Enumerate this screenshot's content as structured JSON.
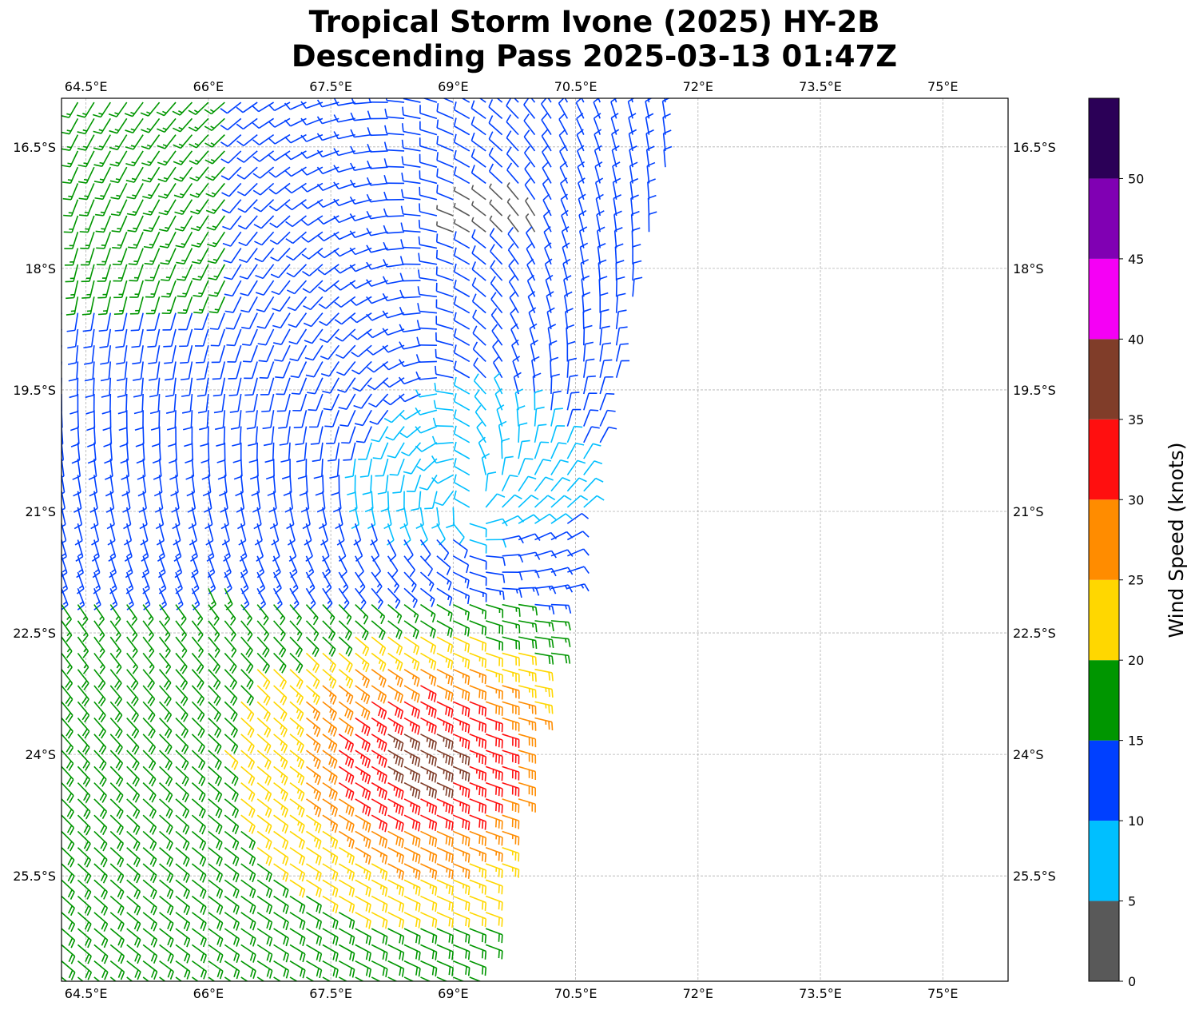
{
  "title": {
    "line1": "Tropical Storm Ivone (2025) HY-2B",
    "line2": "Descending Pass 2025-03-13 01:47Z"
  },
  "map": {
    "lon_range": [
      64.2,
      75.8
    ],
    "lat_range": [
      -26.8,
      -15.9
    ],
    "lon_ticks": [
      {
        "value": 64.5,
        "label": "64.5°E"
      },
      {
        "value": 66.0,
        "label": "66°E"
      },
      {
        "value": 67.5,
        "label": "67.5°E"
      },
      {
        "value": 69.0,
        "label": "69°E"
      },
      {
        "value": 70.5,
        "label": "70.5°E"
      },
      {
        "value": 72.0,
        "label": "72°E"
      },
      {
        "value": 73.5,
        "label": "73.5°E"
      },
      {
        "value": 75.0,
        "label": "75°E"
      }
    ],
    "lat_ticks": [
      {
        "value": -16.5,
        "label": "16.5°S"
      },
      {
        "value": -18.0,
        "label": "18°S"
      },
      {
        "value": -19.5,
        "label": "19.5°S"
      },
      {
        "value": -21.0,
        "label": "21°S"
      },
      {
        "value": -22.5,
        "label": "22.5°S"
      },
      {
        "value": -24.0,
        "label": "24°S"
      },
      {
        "value": -25.5,
        "label": "25.5°S"
      }
    ],
    "storm_center": {
      "lon": 69.2,
      "lat": -21.0
    },
    "swath": {
      "west_edge_lon": 64.2,
      "east_edge_top_lon": 71.8,
      "east_edge_bottom_lon": 69.3
    },
    "grid": true
  },
  "colorbar": {
    "label": "Wind Speed (knots)",
    "min": 0,
    "max": 55,
    "tick_values": [
      0,
      5,
      10,
      15,
      20,
      25,
      30,
      35,
      40,
      45,
      50
    ],
    "tick_labels": [
      "0",
      "5",
      "10",
      "15",
      "20",
      "25",
      "30",
      "35",
      "40",
      "45",
      "50"
    ],
    "bins": [
      {
        "from": 0,
        "to": 5,
        "color": "#595959"
      },
      {
        "from": 5,
        "to": 10,
        "color": "#00bfff"
      },
      {
        "from": 10,
        "to": 15,
        "color": "#0040ff"
      },
      {
        "from": 15,
        "to": 20,
        "color": "#009600"
      },
      {
        "from": 20,
        "to": 25,
        "color": "#ffd700"
      },
      {
        "from": 25,
        "to": 30,
        "color": "#ff8c00"
      },
      {
        "from": 30,
        "to": 35,
        "color": "#ff0f0f"
      },
      {
        "from": 35,
        "to": 40,
        "color": "#803d29"
      },
      {
        "from": 40,
        "to": 45,
        "color": "#f500f5"
      },
      {
        "from": 45,
        "to": 50,
        "color": "#8000b3"
      },
      {
        "from": 50,
        "to": 55,
        "color": "#2b0057"
      }
    ]
  }
}
